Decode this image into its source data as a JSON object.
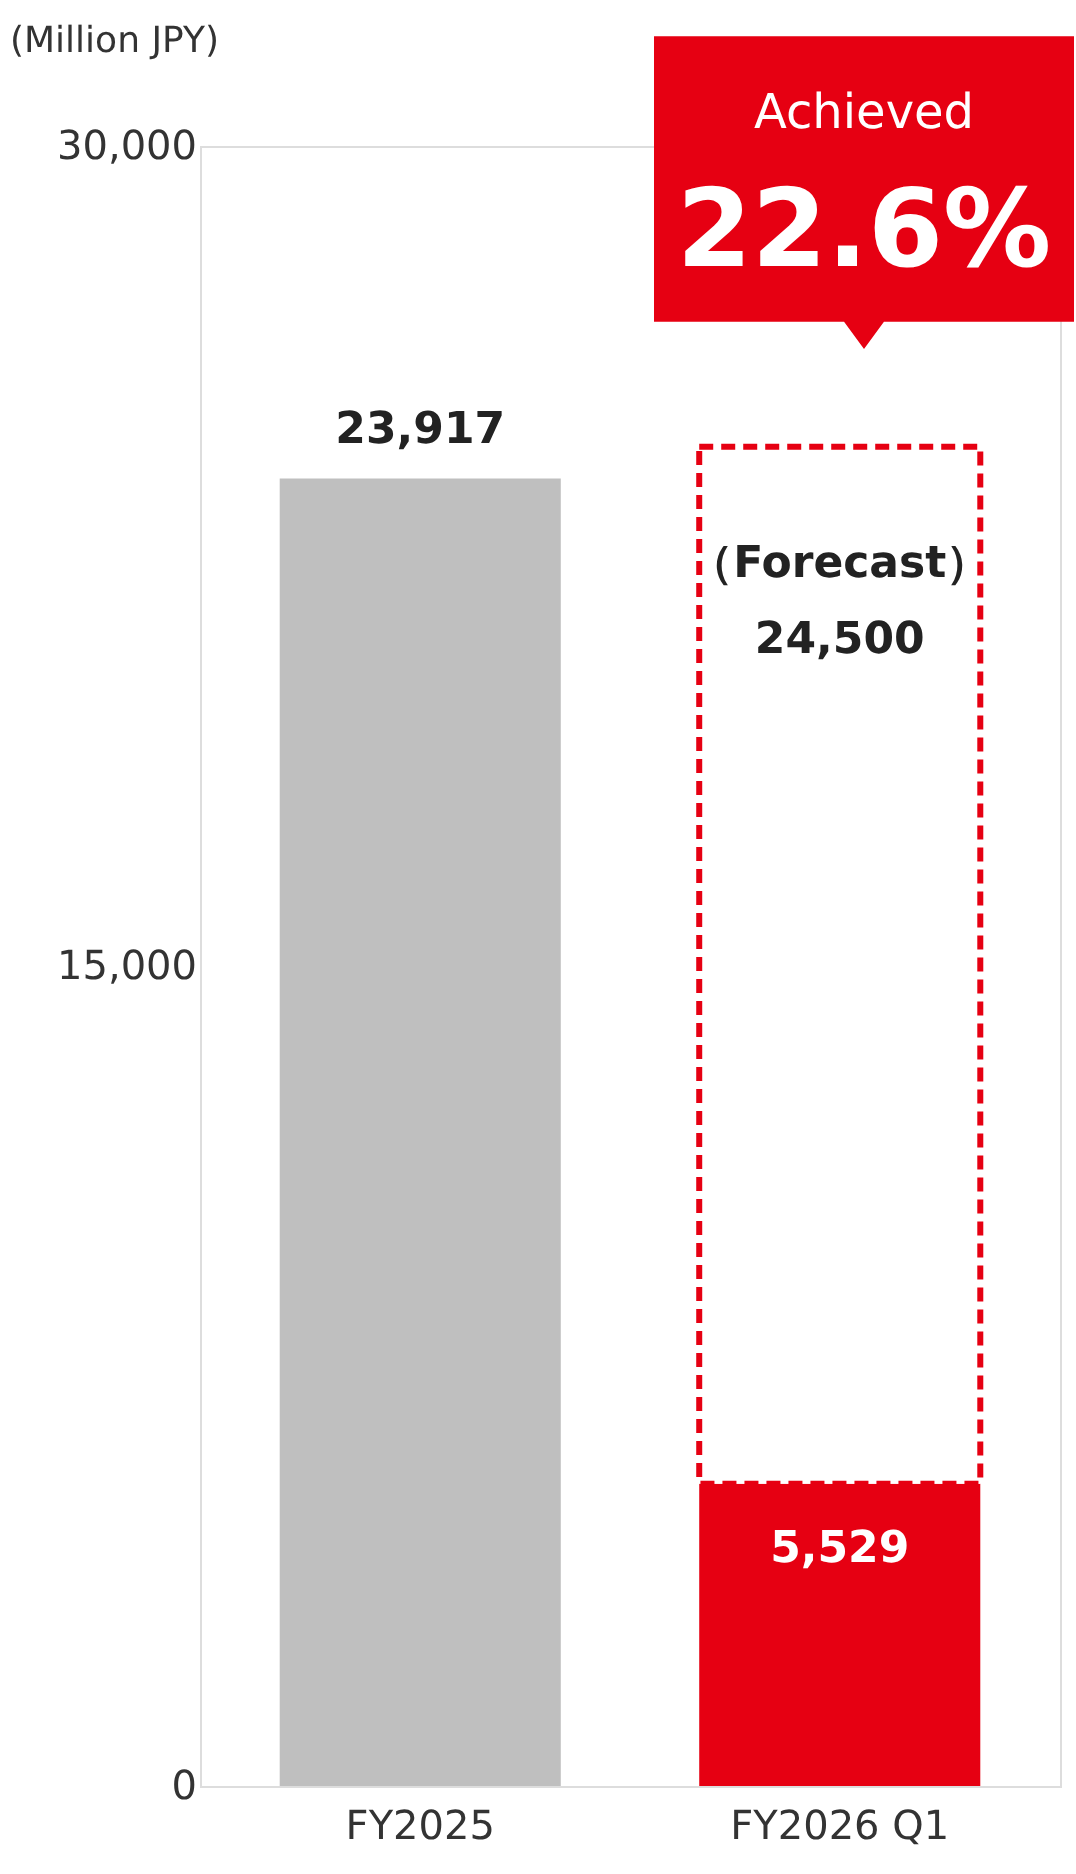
{
  "chart_data": {
    "type": "bar",
    "ylabel": "(Million JPY)",
    "categories": [
      "FY2025",
      "FY2026 Q1"
    ],
    "stacked": true,
    "series": [
      {
        "values": [
          23917,
          5529
        ],
        "colors": [
          "#bfbfbf",
          "#e60012"
        ],
        "value_labels": [
          "23,917",
          "5,529"
        ]
      },
      {
        "name": "（Forecast）",
        "values": [
          null,
          18971
        ],
        "color": "#e60012",
        "line_style": "dashed"
      }
    ],
    "totals": [
      null,
      "24,500"
    ],
    "ylim": [
      0,
      30000
    ],
    "yticks": [
      0,
      {
        "value": 15000,
        "label": "15,000"
      },
      {
        "value": 30000,
        "label": "30,000"
      }
    ],
    "grid": false,
    "annotations": [
      "Achieved",
      "22.6%"
    ]
  }
}
